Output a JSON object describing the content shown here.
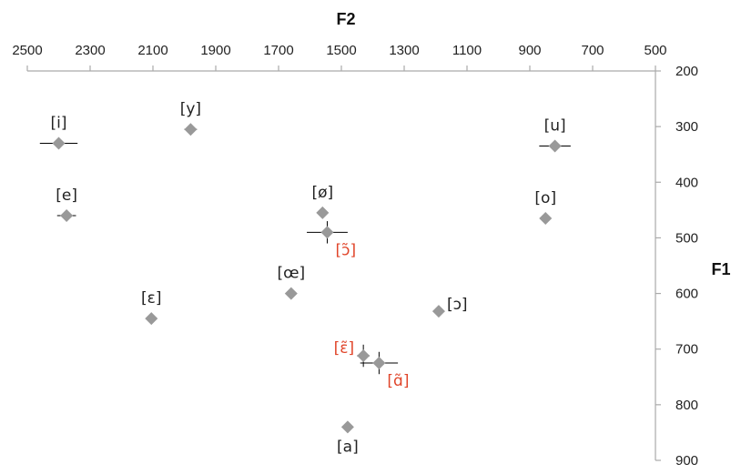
{
  "colors": {
    "oral": "#222222",
    "nasal": "#e0452a",
    "marker": "#999999",
    "axis": "#aaaaaa",
    "error_bar": "#000000"
  },
  "chart_data": {
    "type": "scatter",
    "title": "",
    "xlabel": "F2",
    "ylabel": "F1",
    "x_axis": {
      "position": "top",
      "reversed": true,
      "range": [
        2500,
        500
      ],
      "ticks": [
        "2500",
        "2300",
        "2100",
        "1900",
        "1700",
        "1500",
        "1300",
        "1100",
        "900",
        "700",
        "500"
      ]
    },
    "y_axis": {
      "position": "right",
      "reversed": true,
      "range": [
        200,
        900
      ],
      "ticks": [
        "200",
        "300",
        "400",
        "500",
        "600",
        "700",
        "800",
        "900"
      ]
    },
    "grid": false,
    "marker": "diamond",
    "points": [
      {
        "label": "[i]",
        "f2": 2400,
        "f1": 330,
        "f2_err": 60,
        "f1_err": 0,
        "category": "oral",
        "label_pos": "above"
      },
      {
        "label": "[y]",
        "f2": 1980,
        "f1": 305,
        "f2_err": 20,
        "f1_err": 0,
        "category": "oral",
        "label_pos": "above"
      },
      {
        "label": "[u]",
        "f2": 820,
        "f1": 335,
        "f2_err": 50,
        "f1_err": 0,
        "category": "oral",
        "label_pos": "above"
      },
      {
        "label": "[e]",
        "f2": 2375,
        "f1": 460,
        "f2_err": 30,
        "f1_err": 0,
        "category": "oral",
        "label_pos": "above"
      },
      {
        "label": "[ø]",
        "f2": 1560,
        "f1": 455,
        "f2_err": 0,
        "f1_err": 0,
        "category": "oral",
        "label_pos": "above"
      },
      {
        "label": "[o]",
        "f2": 850,
        "f1": 465,
        "f2_err": 0,
        "f1_err": 0,
        "category": "oral",
        "label_pos": "above"
      },
      {
        "label": "[ɔ̃]",
        "f2": 1545,
        "f1": 490,
        "f2_err": 65,
        "f1_err": 20,
        "category": "nasal",
        "label_pos": "below-right"
      },
      {
        "label": "[œ]",
        "f2": 1660,
        "f1": 600,
        "f2_err": 0,
        "f1_err": 0,
        "category": "oral",
        "label_pos": "above"
      },
      {
        "label": "[ɛ]",
        "f2": 2105,
        "f1": 645,
        "f2_err": 15,
        "f1_err": 0,
        "category": "oral",
        "label_pos": "above"
      },
      {
        "label": "[ɔ]",
        "f2": 1190,
        "f1": 632,
        "f2_err": 0,
        "f1_err": 0,
        "category": "oral",
        "label_pos": "right"
      },
      {
        "label": "[ɛ̃]",
        "f2": 1430,
        "f1": 712,
        "f2_err": 20,
        "f1_err": 20,
        "category": "nasal",
        "label_pos": "left"
      },
      {
        "label": "[ɑ̃]",
        "f2": 1380,
        "f1": 725,
        "f2_err": 60,
        "f1_err": 20,
        "category": "nasal",
        "label_pos": "below-right"
      },
      {
        "label": "[a]",
        "f2": 1480,
        "f1": 840,
        "f2_err": 15,
        "f1_err": 0,
        "category": "oral",
        "label_pos": "below"
      }
    ]
  }
}
